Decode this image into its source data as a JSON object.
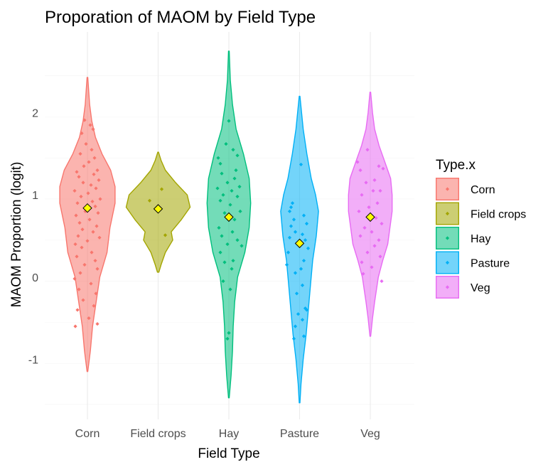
{
  "chart_data": {
    "type": "violin",
    "title": "Proporation of MAOM by Field Type",
    "xlabel": "Field Type",
    "ylabel": "MAOM Proportion (logit)",
    "ylim": [
      -1.55,
      2.75
    ],
    "yticks": [
      -1,
      0,
      1,
      2
    ],
    "categories": [
      "Corn",
      "Field crops",
      "Hay",
      "Pasture",
      "Veg"
    ],
    "colors": [
      "#F8766D",
      "#A3A500",
      "#00BF7D",
      "#00B0F6",
      "#E76BF3"
    ],
    "mean_marker_color": "#FFFF00",
    "legend": {
      "title": "Type.x",
      "position": "right"
    },
    "grid": true,
    "series": [
      {
        "name": "Corn",
        "range": [
          -1.15,
          2.43
        ],
        "mean": 0.84,
        "density": [
          [
            -1.15,
            0.005
          ],
          [
            -0.9,
            0.04
          ],
          [
            -0.6,
            0.07
          ],
          [
            -0.3,
            0.12
          ],
          [
            0.0,
            0.17
          ],
          [
            0.3,
            0.27
          ],
          [
            0.6,
            0.31
          ],
          [
            0.9,
            0.38
          ],
          [
            1.1,
            0.38
          ],
          [
            1.3,
            0.32
          ],
          [
            1.5,
            0.2
          ],
          [
            1.7,
            0.11
          ],
          [
            1.9,
            0.06
          ],
          [
            2.1,
            0.03
          ],
          [
            2.43,
            0.005
          ]
        ],
        "points": [
          [
            -0.04,
            1.91
          ],
          [
            0.04,
            1.85
          ],
          [
            0.08,
            1.8
          ],
          [
            -0.08,
            1.75
          ],
          [
            -0.02,
            1.62
          ],
          [
            0.06,
            1.55
          ],
          [
            -0.1,
            1.5
          ],
          [
            0.1,
            1.45
          ],
          [
            0.02,
            1.4
          ],
          [
            -0.05,
            1.35
          ],
          [
            0.14,
            1.3
          ],
          [
            -0.15,
            1.28
          ],
          [
            0.09,
            1.25
          ],
          [
            -0.12,
            1.22
          ],
          [
            0.16,
            1.18
          ],
          [
            -0.06,
            1.15
          ],
          [
            0.05,
            1.12
          ],
          [
            0.12,
            1.08
          ],
          [
            -0.18,
            1.05
          ],
          [
            0.01,
            1.02
          ],
          [
            -0.09,
            0.98
          ],
          [
            0.18,
            0.95
          ],
          [
            0.07,
            0.92
          ],
          [
            -0.14,
            0.9
          ],
          [
            0.11,
            0.86
          ],
          [
            -0.03,
            0.8
          ],
          [
            0.15,
            0.78
          ],
          [
            -0.16,
            0.75
          ],
          [
            0.03,
            0.7
          ],
          [
            -0.11,
            0.66
          ],
          [
            0.13,
            0.62
          ],
          [
            -0.07,
            0.58
          ],
          [
            0.08,
            0.55
          ],
          [
            -0.13,
            0.5
          ],
          [
            0.17,
            0.48
          ],
          [
            0.0,
            0.44
          ],
          [
            -0.17,
            0.4
          ],
          [
            -0.08,
            0.36
          ],
          [
            0.06,
            0.3
          ],
          [
            -0.15,
            0.25
          ],
          [
            0.11,
            0.2
          ],
          [
            -0.04,
            0.15
          ],
          [
            0.14,
            0.1
          ],
          [
            -0.1,
            0.05
          ],
          [
            -0.18,
            -0.02
          ],
          [
            0.05,
            -0.08
          ],
          [
            -0.12,
            -0.15
          ],
          [
            0.12,
            -0.2
          ],
          [
            -0.06,
            -0.28
          ],
          [
            0.09,
            -0.35
          ],
          [
            -0.14,
            -0.4
          ],
          [
            0.02,
            -0.5
          ],
          [
            0.14,
            -0.57
          ],
          [
            -0.17,
            -0.6
          ]
        ]
      },
      {
        "name": "Field crops",
        "range": [
          0.06,
          1.52
        ],
        "mean": 0.83,
        "density": [
          [
            0.06,
            0.01
          ],
          [
            0.15,
            0.04
          ],
          [
            0.3,
            0.1
          ],
          [
            0.45,
            0.2
          ],
          [
            0.55,
            0.18
          ],
          [
            0.7,
            0.32
          ],
          [
            0.85,
            0.44
          ],
          [
            1.0,
            0.4
          ],
          [
            1.15,
            0.24
          ],
          [
            1.3,
            0.1
          ],
          [
            1.42,
            0.04
          ],
          [
            1.52,
            0.005
          ]
        ],
        "points": [
          [
            0.05,
            1.07
          ],
          [
            -0.12,
            0.93
          ],
          [
            0.1,
            0.51
          ]
        ]
      },
      {
        "name": "Hay",
        "range": [
          -1.47,
          2.75
        ],
        "mean": 0.73,
        "density": [
          [
            -1.47,
            0.005
          ],
          [
            -1.2,
            0.03
          ],
          [
            -0.9,
            0.05
          ],
          [
            -0.6,
            0.06
          ],
          [
            -0.3,
            0.08
          ],
          [
            0.0,
            0.12
          ],
          [
            0.3,
            0.22
          ],
          [
            0.6,
            0.28
          ],
          [
            0.9,
            0.3
          ],
          [
            1.2,
            0.28
          ],
          [
            1.5,
            0.2
          ],
          [
            1.8,
            0.1
          ],
          [
            2.1,
            0.05
          ],
          [
            2.4,
            0.02
          ],
          [
            2.75,
            0.005
          ]
        ],
        "points": [
          [
            0.0,
            1.9
          ],
          [
            -0.04,
            1.62
          ],
          [
            0.06,
            1.55
          ],
          [
            0.12,
            1.48
          ],
          [
            -0.15,
            1.45
          ],
          [
            -0.12,
            1.38
          ],
          [
            0.1,
            1.3
          ],
          [
            -0.1,
            1.26
          ],
          [
            0.08,
            1.2
          ],
          [
            -0.02,
            1.15
          ],
          [
            0.15,
            1.1
          ],
          [
            -0.16,
            1.08
          ],
          [
            0.04,
            1.05
          ],
          [
            -0.08,
            1.0
          ],
          [
            0.12,
            0.98
          ],
          [
            -0.12,
            0.93
          ],
          [
            0.02,
            0.88
          ],
          [
            0.16,
            0.8
          ],
          [
            -0.06,
            0.78
          ],
          [
            0.08,
            0.7
          ],
          [
            -0.14,
            0.6
          ],
          [
            0.05,
            0.55
          ],
          [
            -0.1,
            0.5
          ],
          [
            0.12,
            0.45
          ],
          [
            -0.02,
            0.4
          ],
          [
            0.18,
            0.38
          ],
          [
            -0.12,
            0.3
          ],
          [
            0.06,
            0.2
          ],
          [
            -0.06,
            0.18
          ],
          [
            0.04,
            0.1
          ],
          [
            -0.08,
            -0.05
          ],
          [
            0.02,
            -0.15
          ],
          [
            0.0,
            -0.68
          ],
          [
            -0.02,
            -0.75
          ]
        ]
      },
      {
        "name": "Pasture",
        "range": [
          -1.53,
          2.2
        ],
        "mean": 0.41,
        "density": [
          [
            -1.53,
            0.005
          ],
          [
            -1.3,
            0.02
          ],
          [
            -1.0,
            0.05
          ],
          [
            -0.7,
            0.09
          ],
          [
            -0.4,
            0.12
          ],
          [
            -0.1,
            0.15
          ],
          [
            0.2,
            0.18
          ],
          [
            0.5,
            0.23
          ],
          [
            0.8,
            0.26
          ],
          [
            1.0,
            0.22
          ],
          [
            1.2,
            0.16
          ],
          [
            1.5,
            0.1
          ],
          [
            1.8,
            0.05
          ],
          [
            2.2,
            0.005
          ]
        ],
        "points": [
          [
            0.02,
            1.37
          ],
          [
            -0.1,
            0.9
          ],
          [
            -0.12,
            0.85
          ],
          [
            -0.14,
            0.8
          ],
          [
            0.06,
            0.75
          ],
          [
            -0.08,
            0.7
          ],
          [
            0.1,
            0.65
          ],
          [
            -0.12,
            0.62
          ],
          [
            -0.06,
            0.55
          ],
          [
            0.04,
            0.52
          ],
          [
            -0.14,
            0.48
          ],
          [
            0.08,
            0.45
          ],
          [
            -0.02,
            0.42
          ],
          [
            0.12,
            0.35
          ],
          [
            -0.16,
            0.3
          ],
          [
            0.06,
            0.2
          ],
          [
            -0.18,
            0.15
          ],
          [
            0.02,
            0.1
          ],
          [
            -0.06,
            0.05
          ],
          [
            0.04,
            -0.1
          ],
          [
            -0.04,
            -0.2
          ],
          [
            0.08,
            -0.38
          ],
          [
            0.1,
            -0.4
          ],
          [
            -0.02,
            -0.45
          ],
          [
            0.04,
            -0.52
          ],
          [
            -0.06,
            -0.6
          ],
          [
            0.06,
            -0.72
          ],
          [
            -0.08,
            -0.75
          ]
        ]
      },
      {
        "name": "Veg",
        "range": [
          -0.72,
          2.25
        ],
        "mean": 0.73,
        "density": [
          [
            -0.72,
            0.005
          ],
          [
            -0.5,
            0.03
          ],
          [
            -0.3,
            0.06
          ],
          [
            0.0,
            0.11
          ],
          [
            0.2,
            0.17
          ],
          [
            0.4,
            0.24
          ],
          [
            0.6,
            0.27
          ],
          [
            0.8,
            0.3
          ],
          [
            1.0,
            0.3
          ],
          [
            1.2,
            0.28
          ],
          [
            1.4,
            0.2
          ],
          [
            1.6,
            0.12
          ],
          [
            1.8,
            0.06
          ],
          [
            2.0,
            0.03
          ],
          [
            2.25,
            0.005
          ]
        ],
        "points": [
          [
            -0.04,
            1.55
          ],
          [
            -0.18,
            1.4
          ],
          [
            0.12,
            1.35
          ],
          [
            -0.14,
            1.3
          ],
          [
            0.18,
            1.32
          ],
          [
            0.06,
            1.18
          ],
          [
            -0.06,
            1.15
          ],
          [
            0.14,
            1.05
          ],
          [
            0.04,
            1.05
          ],
          [
            -0.12,
            1.0
          ],
          [
            0.1,
            0.9
          ],
          [
            -0.02,
            0.85
          ],
          [
            -0.16,
            0.8
          ],
          [
            0.08,
            0.72
          ],
          [
            0.16,
            0.65
          ],
          [
            -0.08,
            0.6
          ],
          [
            0.02,
            0.55
          ],
          [
            -0.14,
            0.5
          ],
          [
            0.12,
            0.45
          ],
          [
            0.06,
            0.38
          ],
          [
            -0.04,
            0.3
          ],
          [
            0.14,
            0.25
          ],
          [
            -0.12,
            0.18
          ],
          [
            0.02,
            0.12
          ],
          [
            -0.1,
            0.04
          ],
          [
            0.16,
            -0.05
          ]
        ]
      }
    ]
  }
}
